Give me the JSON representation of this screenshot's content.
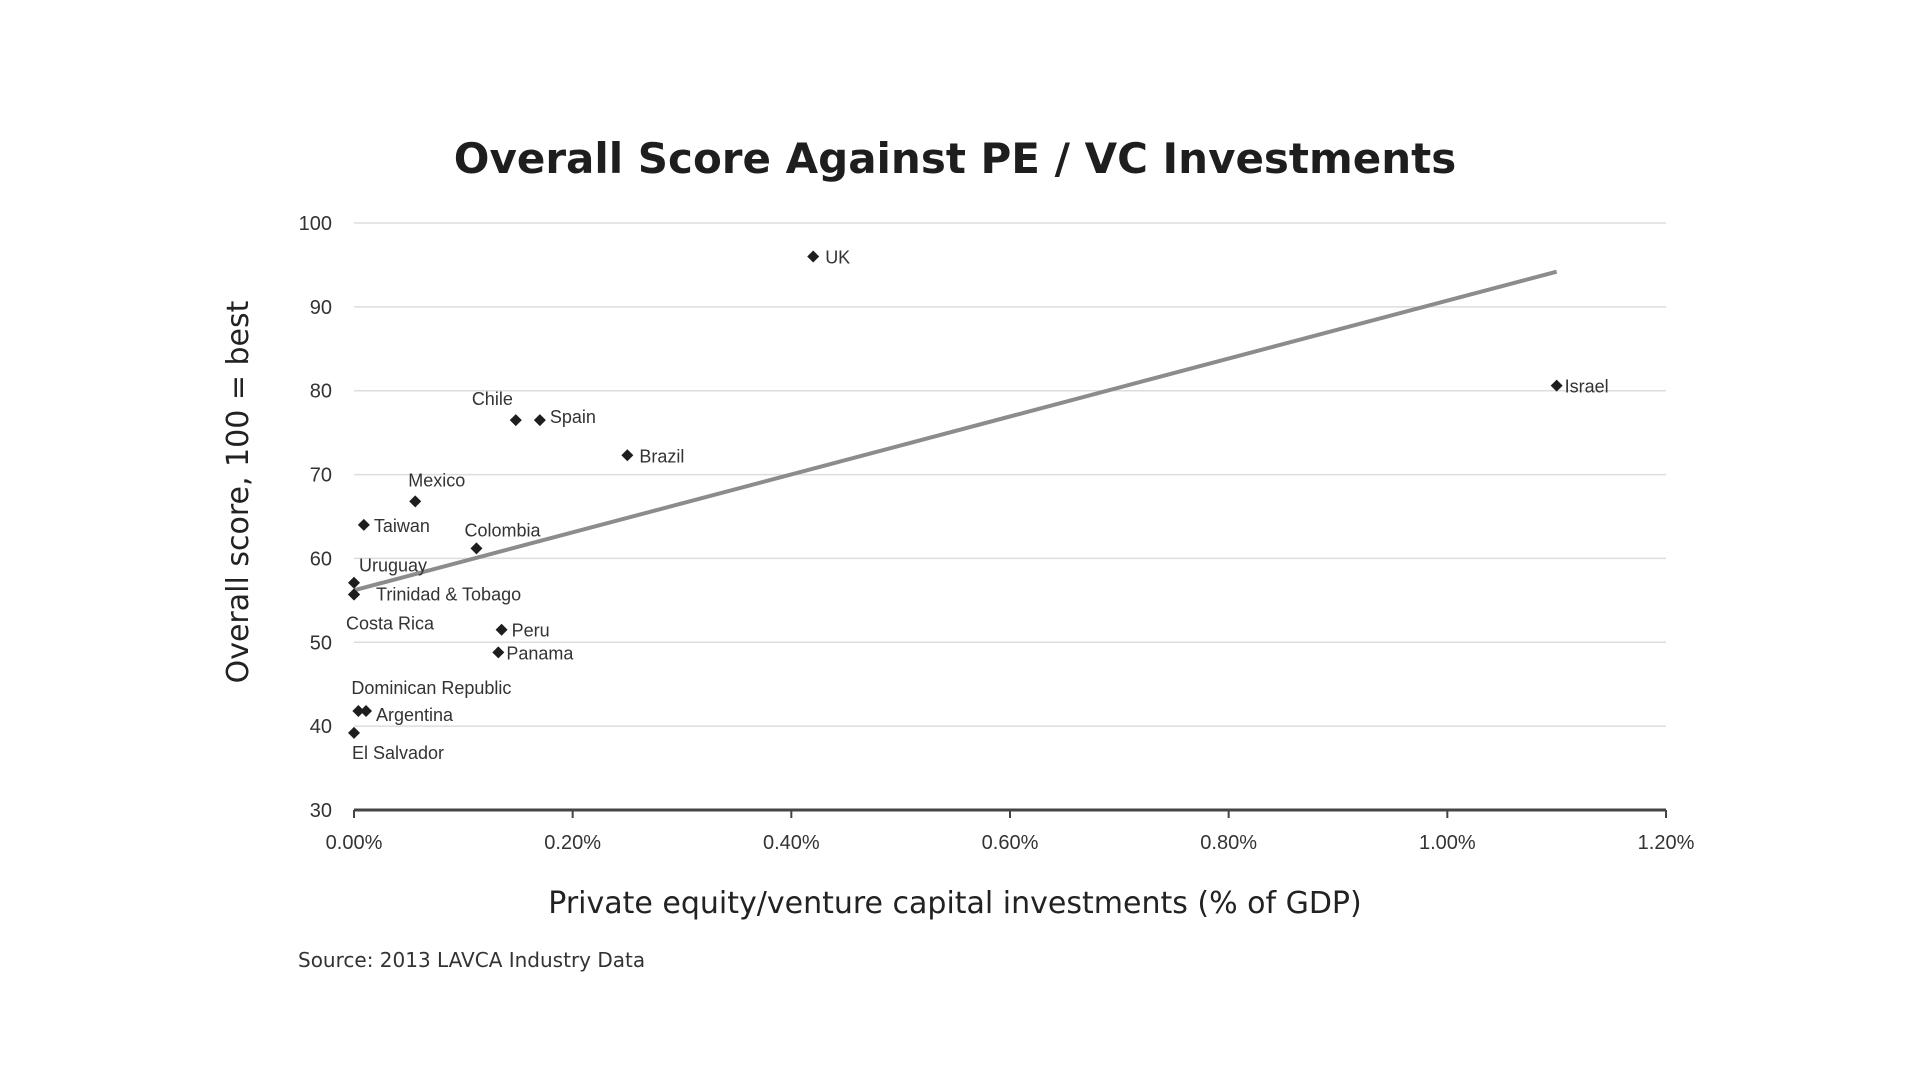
{
  "chart_data": {
    "type": "scatter",
    "title": "Overall Score Against PE / VC Investments",
    "xlabel": "Private equity/venture capital investments (% of GDP)",
    "ylabel": "Overall score, 100 = best",
    "source": "Source: 2013 LAVCA Industry Data",
    "xlim": [
      0,
      1.2
    ],
    "ylim": [
      30,
      100
    ],
    "x_ticks": [
      0,
      0.2,
      0.4,
      0.6,
      0.8,
      1.0,
      1.2
    ],
    "x_tick_labels": [
      "0.00%",
      "0.20%",
      "0.40%",
      "0.60%",
      "0.80%",
      "1.00%",
      "1.20%"
    ],
    "y_ticks": [
      30,
      40,
      50,
      60,
      70,
      80,
      90,
      100
    ],
    "y_tick_labels": [
      "30",
      "40",
      "50",
      "60",
      "70",
      "80",
      "90",
      "100"
    ],
    "grid": true,
    "trendline": {
      "x": [
        0,
        1.1
      ],
      "y": [
        56.2,
        94.2
      ]
    },
    "points": [
      {
        "label": "UK",
        "x": 0.42,
        "y": 96.0
      },
      {
        "label": "Israel",
        "x": 1.1,
        "y": 80.6
      },
      {
        "label": "Chile",
        "x": 0.148,
        "y": 76.5
      },
      {
        "label": "Spain",
        "x": 0.17,
        "y": 76.5
      },
      {
        "label": "Brazil",
        "x": 0.25,
        "y": 72.3
      },
      {
        "label": "Mexico",
        "x": 0.056,
        "y": 66.8
      },
      {
        "label": "Taiwan",
        "x": 0.009,
        "y": 64.0
      },
      {
        "label": "Colombia",
        "x": 0.112,
        "y": 61.2
      },
      {
        "label": "Uruguay",
        "x": 0.0,
        "y": 57.1
      },
      {
        "label": "Trinidad & Tobago",
        "x": 0.0,
        "y": 55.7
      },
      {
        "label": "Costa Rica",
        "x": 0.0,
        "y": 55.7
      },
      {
        "label": "Peru",
        "x": 0.135,
        "y": 51.5
      },
      {
        "label": "Panama",
        "x": 0.132,
        "y": 48.8
      },
      {
        "label": "Dominican Republic",
        "x": 0.004,
        "y": 41.8
      },
      {
        "label": "Argentina",
        "x": 0.011,
        "y": 41.8
      },
      {
        "label": "El Salvador",
        "x": 0.0,
        "y": 39.2
      }
    ]
  }
}
